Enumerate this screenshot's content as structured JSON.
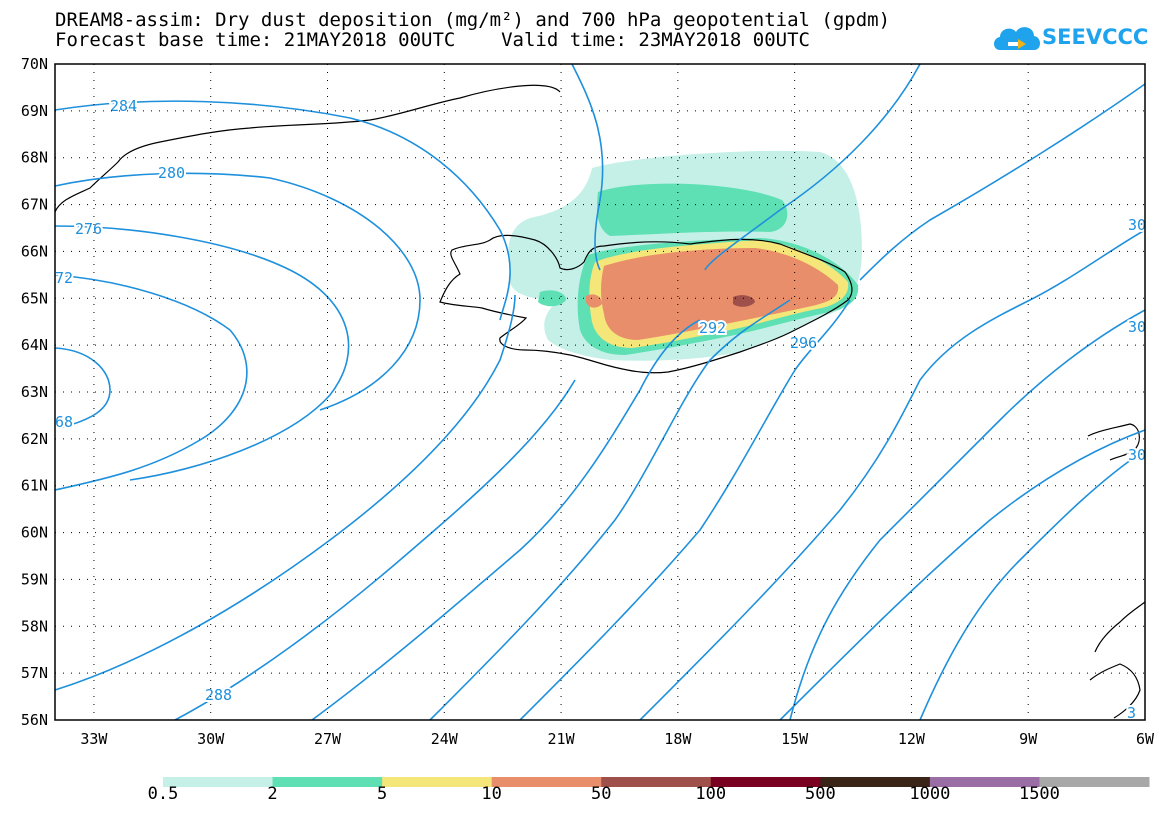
{
  "title_line1": "DREAM8-assim: Dry dust deposition (mg/m²) and 700 hPa geopotential (gpdm)",
  "title_line2": "Forecast base time: 21MAY2018 00UTC    Valid time: 23MAY2018 00UTC",
  "logo": {
    "text": "SEEVCCC",
    "icon": "cloud-logo-icon",
    "color": "#1ea3ec"
  },
  "map": {
    "lon_range": [
      -34,
      -6
    ],
    "lat_range": [
      56,
      70
    ],
    "lat_labels": [
      "70N",
      "69N",
      "68N",
      "67N",
      "66N",
      "65N",
      "64N",
      "63N",
      "62N",
      "61N",
      "60N",
      "59N",
      "58N",
      "57N",
      "56N"
    ],
    "lon_labels": [
      "33W",
      "30W",
      "27W",
      "24W",
      "21W",
      "18W",
      "15W",
      "12W",
      "9W",
      "6W"
    ],
    "contour_color": "#1e90dc",
    "contour_labels": [
      "284",
      "280",
      "276",
      "72",
      "68",
      "288",
      "292",
      "296",
      "30",
      "30",
      "30",
      "3"
    ]
  },
  "legend": {
    "thresholds": [
      "0.5",
      "2",
      "5",
      "10",
      "50",
      "100",
      "500",
      "1000",
      "1500"
    ],
    "colors": [
      "#c4f0e8",
      "#5ee0b4",
      "#f5e67a",
      "#e98e6a",
      "#a0504a",
      "#7a0022",
      "#3a2418",
      "#9a6ea4",
      "#a8a8a8"
    ]
  }
}
